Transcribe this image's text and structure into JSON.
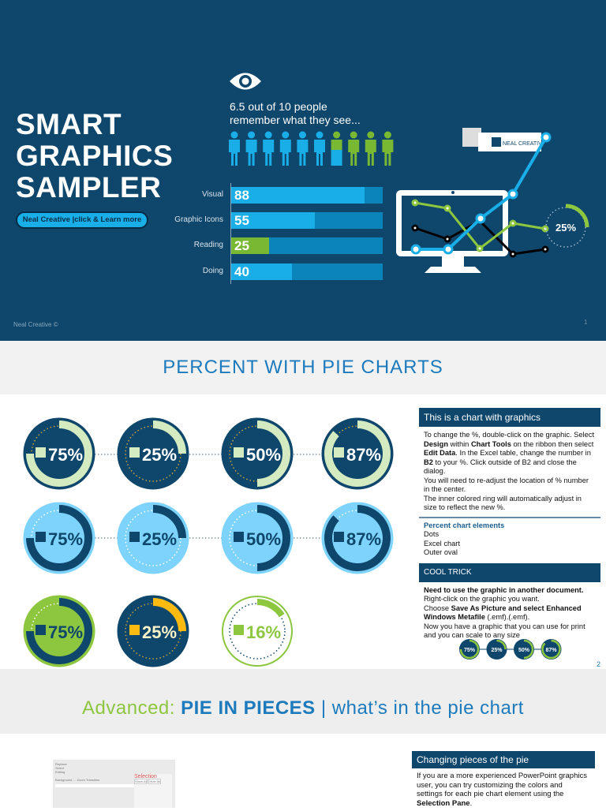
{
  "slide1": {
    "title_lines": [
      "SMART",
      "GRAPHICS",
      "SAMPLER"
    ],
    "cta": {
      "brand": "Neal Creative",
      "sep": "|click & ",
      "bold": "Learn more"
    },
    "stat_lines": [
      "6.5 out of 10 people",
      "remember what they see..."
    ],
    "people": {
      "total": 10,
      "highlighted": 6.5,
      "colors": {
        "main": "#19aee8",
        "other": "#79b833"
      }
    },
    "bars": [
      {
        "label": "Visual",
        "value": 88,
        "color": "#19aee8"
      },
      {
        "label": "Graphic Icons",
        "value": 55,
        "color": "#19aee8"
      },
      {
        "label": "Reading",
        "value": 25,
        "color": "#79b833"
      },
      {
        "label": "Doing",
        "value": 40,
        "color": "#19aee8"
      }
    ],
    "logo_text": "NEAL CREATIVE",
    "ring_value": "25%",
    "footer": "Neal Creative ©",
    "page": "1"
  },
  "band1": {
    "title": "PERCENT WITH PIE CHARTS"
  },
  "slide2": {
    "pies": [
      {
        "label": "75%",
        "value": 75,
        "bg": "#0e466c",
        "ring": "#d4eac0",
        "text": "#fff",
        "square": "#d4eac0",
        "style": "dark"
      },
      {
        "label": "25%",
        "value": 25,
        "bg": "#0e466c",
        "ring": "#d4eac0",
        "text": "#fff",
        "square": "#d4eac0",
        "style": "dark"
      },
      {
        "label": "50%",
        "value": 50,
        "bg": "#0e466c",
        "ring": "#d4eac0",
        "text": "#fff",
        "square": "#d4eac0",
        "style": "dark"
      },
      {
        "label": "87%",
        "value": 87,
        "bg": "#0e466c",
        "ring": "#d4eac0",
        "text": "#fff",
        "square": "#d4eac0",
        "style": "dark"
      },
      {
        "label": "75%",
        "value": 75,
        "bg": "#7dd3fb",
        "ring": "#0e466c",
        "text": "#0e466c",
        "square": "#0e466c",
        "style": "light"
      },
      {
        "label": "25%",
        "value": 25,
        "bg": "#7dd3fb",
        "ring": "#0e466c",
        "text": "#0e466c",
        "square": "#0e466c",
        "style": "light"
      },
      {
        "label": "50%",
        "value": 50,
        "bg": "#7dd3fb",
        "ring": "#0e466c",
        "text": "#0e466c",
        "square": "#0e466c",
        "style": "light"
      },
      {
        "label": "87%",
        "value": 87,
        "bg": "#7dd3fb",
        "ring": "#0e466c",
        "text": "#0e466c",
        "square": "#0e466c",
        "style": "light"
      },
      {
        "label": "75%",
        "value": 75,
        "bg": "#8dc63f",
        "ring": "#0e466c",
        "text": "#0e466c",
        "square": "#0e466c",
        "style": "green"
      },
      {
        "label": "25%",
        "value": 25,
        "bg": "#0e466c",
        "ring": "#fdbb12",
        "text": "#fdf3c8",
        "square": "#fdbb12",
        "style": "dark"
      },
      {
        "label": "16%",
        "value": 16,
        "bg": "#ffffff",
        "ring": "#8dc63f",
        "text": "#8dc63f",
        "square": "#8dc63f",
        "style": "outline"
      }
    ],
    "info": {
      "header": "This is a chart with graphics",
      "p1": [
        "To change the %, double-click on the graphic. Select ",
        "Design",
        " within ",
        "Chart Tools",
        " on the ribbon then select ",
        "Edit Data",
        ". In the Excel table, change the number in ",
        "B2",
        " to your %. Click outside of B2 and close the dialog."
      ],
      "p2": "You will need to re-adjust the location of % number in the center.",
      "p3": "The inner colored ring will automatically adjust in size to reflect the new %.",
      "elements_title": "Percent chart elements",
      "elements": [
        "Dots",
        "Excel chart",
        "Outer oval"
      ]
    },
    "trick": {
      "header": "COOL TRICK",
      "bold_line": "Need to use the graphic in another document.",
      "line2": "Right-click on the graphic you want.",
      "line3a": "Choose ",
      "line3b": "Save As Picture and select Enhanced Windows Metafile",
      " line3c": " (.emf).",
      "line4": "Now you have a graphic that you can use for print and you can scale to any size"
    },
    "mini": [
      "75%",
      "25%",
      "50%",
      "87%"
    ],
    "page": "2"
  },
  "band2": {
    "prefix": "Advanced: ",
    "bold": "PIE IN PIECES",
    "rest": " | what’s in the pie chart",
    "colors": {
      "prefix": "#8dc63f",
      "main": "#1d7bbd"
    }
  },
  "slide3": {
    "header": "Changing pieces of the pie",
    "body_a": "If you are a more experienced PowerPoint graphics user, you can try customizing the colors and settings for each pie chart element using the ",
    "body_b": "Selection Pane",
    "body_c": ".",
    "screenshot": {
      "items": [
        "Replace",
        "Select",
        "Editing",
        "Background",
        "Zoom Transition"
      ],
      "pane_title": "Selection",
      "show_all": "Show All",
      "hide_all": "Hide All"
    }
  }
}
